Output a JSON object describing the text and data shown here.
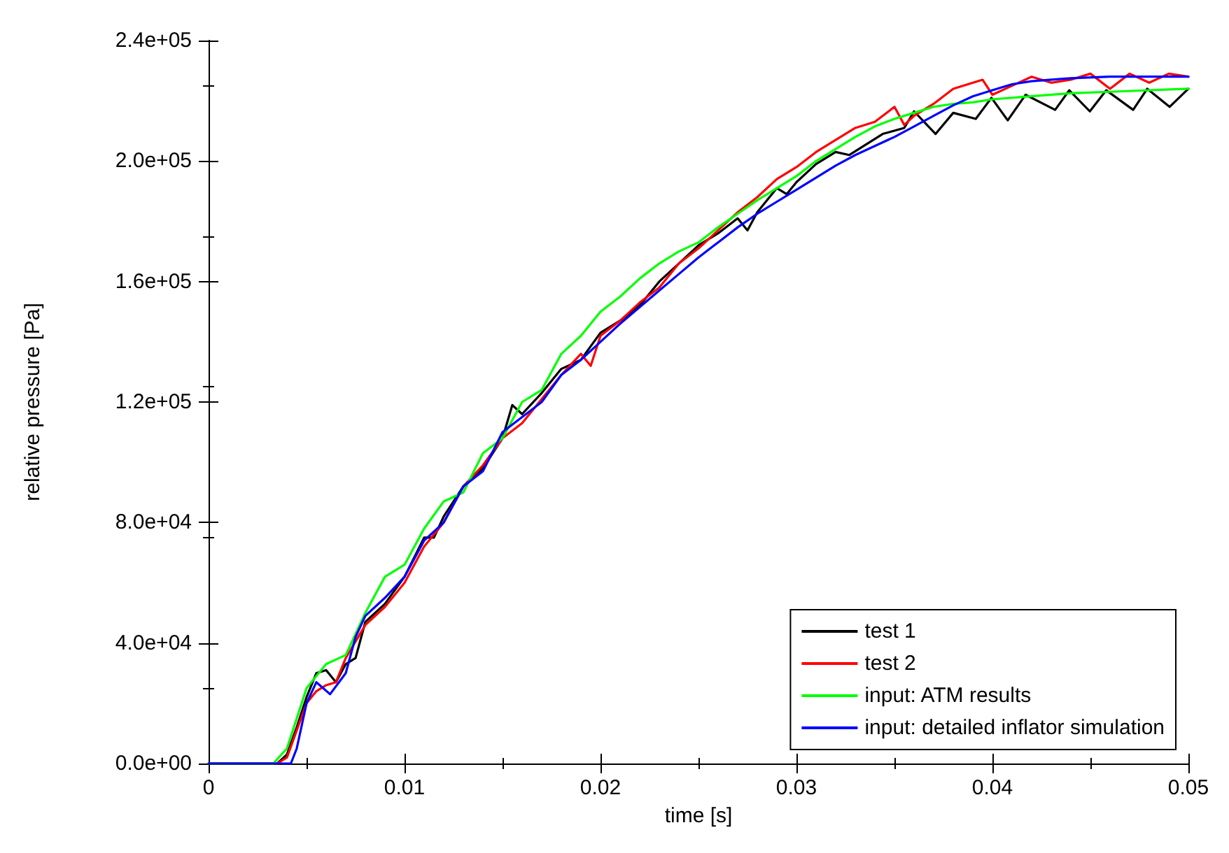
{
  "chart_data": {
    "type": "line",
    "xlabel": "time [s]",
    "ylabel": "relative pressure [Pa]",
    "xlim": [
      0,
      0.05
    ],
    "xticks": [
      0,
      0.01,
      0.02,
      0.03,
      0.04,
      0.05
    ],
    "ylim": [
      0,
      240000
    ],
    "yticks": [
      {
        "value": 0,
        "label": "0.0e+00"
      },
      {
        "value": 40000,
        "label": "4.0e+04"
      },
      {
        "value": 80000,
        "label": "8.0e+04"
      },
      {
        "value": 120000,
        "label": "1.2e+05"
      },
      {
        "value": 160000,
        "label": "1.6e+05"
      },
      {
        "value": 200000,
        "label": "2.0e+05"
      },
      {
        "value": 240000,
        "label": "2.4e+05"
      }
    ],
    "grid": false,
    "legend": "bottom right",
    "marker": "none",
    "line_style": "solid",
    "series": [
      {
        "name": "test 1",
        "color": "#000000",
        "x": [
          0,
          0.0035,
          0.004,
          0.0045,
          0.005,
          0.0055,
          0.006,
          0.0065,
          0.007,
          0.0075,
          0.008,
          0.009,
          0.01,
          0.011,
          0.0115,
          0.012,
          0.013,
          0.014,
          0.015,
          0.0155,
          0.016,
          0.017,
          0.018,
          0.019,
          0.02,
          0.021,
          0.022,
          0.023,
          0.024,
          0.025,
          0.026,
          0.027,
          0.0275,
          0.028,
          0.029,
          0.0295,
          0.03,
          0.031,
          0.032,
          0.0327,
          0.0344,
          0.0355,
          0.036,
          0.0371,
          0.038,
          0.03915,
          0.03995,
          0.04078,
          0.04169,
          0.0432,
          0.04392,
          0.04497,
          0.04581,
          0.04718,
          0.0479,
          0.04904,
          0.05
        ],
        "values": [
          0,
          0,
          3000,
          12000,
          22000,
          30000,
          31000,
          27000,
          33000,
          35000,
          47000,
          53000,
          62000,
          75000,
          75000,
          82000,
          92000,
          98000,
          108000,
          119000,
          116000,
          123000,
          131000,
          134000,
          143000,
          147000,
          152000,
          160000,
          166000,
          172000,
          176000,
          181000,
          177000,
          183000,
          191000,
          189000,
          193000,
          199000,
          203000,
          202000,
          209000,
          211000,
          216500,
          209000,
          216000,
          214000,
          221000,
          213500,
          222000,
          217000,
          223500,
          216500,
          223500,
          217000,
          224000,
          218000,
          224000
        ]
      },
      {
        "name": "test 2",
        "color": "#ff0000",
        "x": [
          0,
          0.0035,
          0.004,
          0.005,
          0.0055,
          0.006,
          0.0065,
          0.007,
          0.008,
          0.009,
          0.01,
          0.011,
          0.012,
          0.013,
          0.014,
          0.015,
          0.016,
          0.017,
          0.018,
          0.019,
          0.0195,
          0.02,
          0.021,
          0.022,
          0.023,
          0.024,
          0.025,
          0.026,
          0.027,
          0.028,
          0.029,
          0.03,
          0.031,
          0.032,
          0.033,
          0.034,
          0.035,
          0.0355,
          0.036,
          0.037,
          0.038,
          0.0395,
          0.04,
          0.041,
          0.042,
          0.043,
          0.044,
          0.045,
          0.046,
          0.047,
          0.048,
          0.049,
          0.05
        ],
        "values": [
          0,
          0,
          2000,
          20000,
          24000,
          26000,
          27000,
          35000,
          46000,
          52000,
          60000,
          72000,
          80000,
          92000,
          99000,
          108000,
          113000,
          121000,
          129000,
          136000,
          132000,
          142000,
          147000,
          153000,
          158000,
          166000,
          171000,
          177000,
          183000,
          188000,
          194000,
          198000,
          203000,
          207000,
          211000,
          213000,
          218000,
          212000,
          215000,
          219000,
          224000,
          227000,
          222000,
          225000,
          228000,
          226000,
          227000,
          229000,
          224000,
          229000,
          226000,
          229000,
          228000
        ]
      },
      {
        "name": "input: ATM results",
        "color": "#00ff00",
        "x": [
          0,
          0.0033,
          0.004,
          0.005,
          0.006,
          0.007,
          0.008,
          0.009,
          0.01,
          0.011,
          0.012,
          0.013,
          0.014,
          0.015,
          0.016,
          0.017,
          0.018,
          0.019,
          0.02,
          0.021,
          0.022,
          0.023,
          0.024,
          0.025,
          0.026,
          0.027,
          0.028,
          0.029,
          0.03,
          0.031,
          0.032,
          0.033,
          0.034,
          0.035,
          0.036,
          0.037,
          0.038,
          0.039,
          0.04,
          0.042,
          0.044,
          0.046,
          0.05
        ],
        "values": [
          0,
          0,
          5000,
          25000,
          33000,
          36000,
          50000,
          62000,
          66000,
          78000,
          87000,
          90000,
          103000,
          108000,
          120000,
          124000,
          136000,
          142000,
          150000,
          155000,
          161000,
          166000,
          170000,
          173000,
          178000,
          182500,
          187000,
          191000,
          195000,
          200000,
          204000,
          208000,
          211500,
          214000,
          216000,
          218000,
          219000,
          219500,
          220500,
          221500,
          222500,
          223000,
          224000
        ]
      },
      {
        "name": "input: detailed inflator simulation",
        "color": "#0000ff",
        "x": [
          0,
          0.0042,
          0.0045,
          0.005,
          0.0055,
          0.0062,
          0.007,
          0.0075,
          0.008,
          0.009,
          0.01,
          0.011,
          0.012,
          0.013,
          0.014,
          0.015,
          0.016,
          0.017,
          0.018,
          0.019,
          0.02,
          0.021,
          0.022,
          0.023,
          0.024,
          0.025,
          0.026,
          0.027,
          0.028,
          0.029,
          0.03,
          0.031,
          0.032,
          0.033,
          0.034,
          0.035,
          0.036,
          0.037,
          0.038,
          0.039,
          0.04,
          0.041,
          0.042,
          0.044,
          0.046,
          0.05
        ],
        "values": [
          0,
          0,
          5000,
          20000,
          27000,
          23000,
          30000,
          42000,
          49000,
          55000,
          62000,
          74000,
          80000,
          92000,
          97000,
          110000,
          115000,
          120000,
          129000,
          134000,
          140000,
          146000,
          151500,
          157000,
          162500,
          168000,
          173000,
          178000,
          182500,
          186500,
          190500,
          194500,
          198500,
          202000,
          205000,
          208000,
          211500,
          215000,
          218500,
          221500,
          223500,
          225500,
          226500,
          227500,
          228000,
          228000
        ]
      }
    ]
  }
}
